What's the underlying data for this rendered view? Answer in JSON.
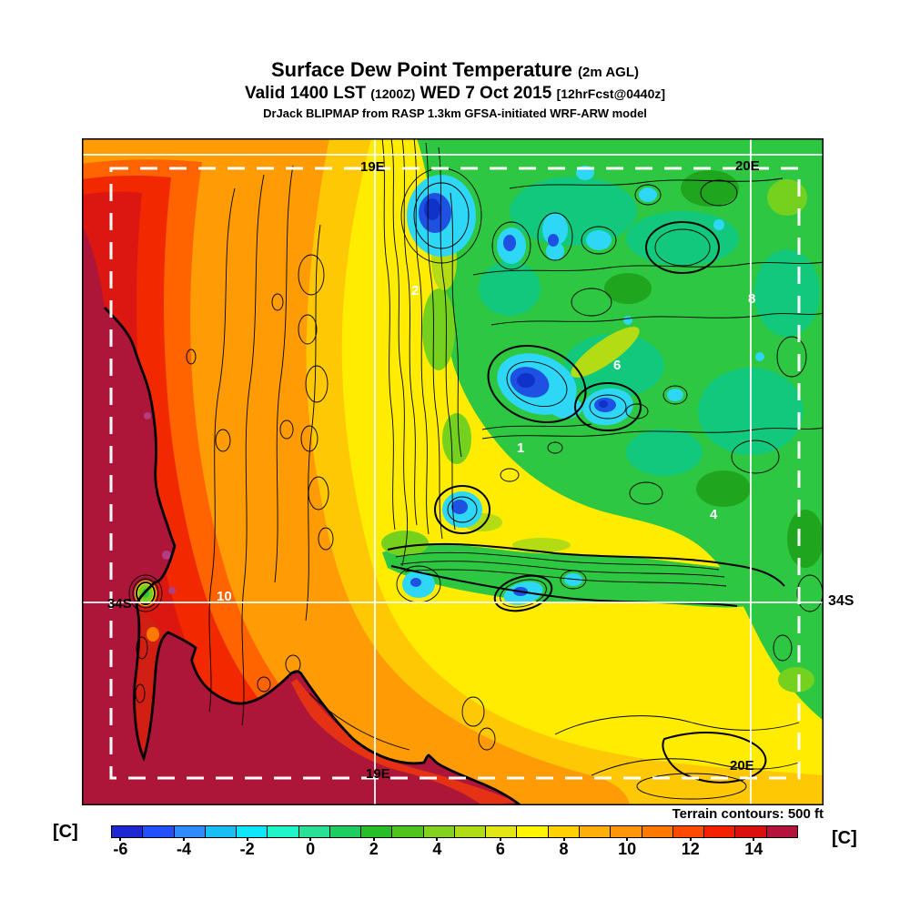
{
  "header": {
    "title": "Surface Dew Point Temperature",
    "title_note": "(2m AGL)",
    "valid_prefix": "Valid 1400 LST ",
    "valid_zulu": "(1200Z)",
    "valid_date": " WED 7 Oct 2015 ",
    "valid_fcst": "[12hrFcst@0440z]",
    "model_line": "DrJack BLIPMAP from RASP 1.3km GFSA-initiated WRF-ARW model"
  },
  "map": {
    "grid_labels": {
      "meridian_19e_top": "19E",
      "meridian_20e_top": "20E",
      "parallel_34s_left": "34S",
      "parallel_34s_right": "34S",
      "meridian_19e_bottom": "19E",
      "meridian_20e_bottom": "20E"
    },
    "value_labels": {
      "v2": "2",
      "v8": "8",
      "v6": "6",
      "v1": "1",
      "v4": "4",
      "v10": "10"
    }
  },
  "footer": {
    "terrain_note": "Terrain contours: 500 ft"
  },
  "colorbar": {
    "unit_left": "[C]",
    "unit_right": "[C]",
    "min": -6.3,
    "max": 15.4,
    "tick_values": [
      -6,
      -4,
      -2,
      0,
      2,
      4,
      6,
      8,
      10,
      12,
      14
    ],
    "segment_colors": [
      "#1E28D2",
      "#2350FF",
      "#2D8CFA",
      "#19BEF5",
      "#0FE6FA",
      "#1EF5C8",
      "#28E196",
      "#1ECD5F",
      "#28BE28",
      "#50C31E",
      "#82D21E",
      "#AFDC14",
      "#E1E614",
      "#FFF500",
      "#FFD200",
      "#FFAF0A",
      "#FF960A",
      "#FF7800",
      "#FF4B00",
      "#F52000",
      "#DC0F0F",
      "#B4143C"
    ]
  }
}
